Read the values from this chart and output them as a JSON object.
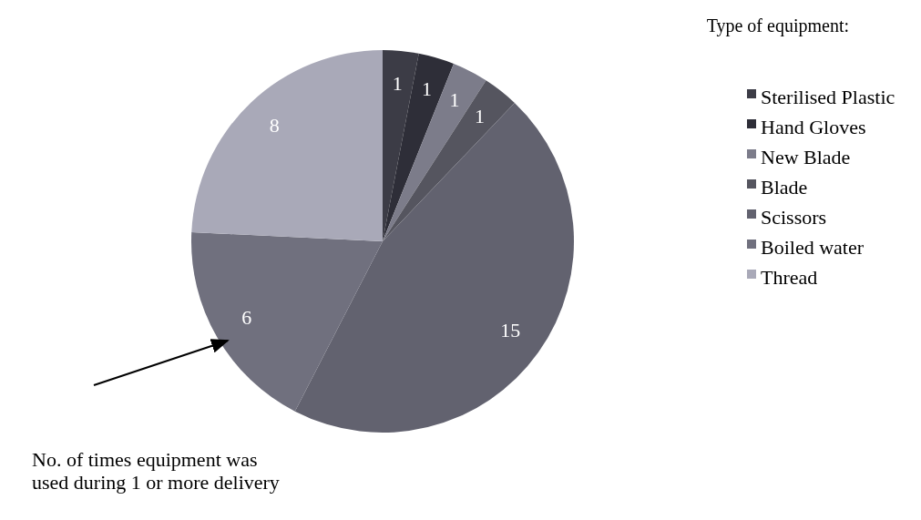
{
  "chart_data": {
    "type": "pie",
    "legend_title": "Type of equipment:",
    "categories": [
      "Sterilised Plastic",
      "Hand Gloves",
      "New Blade",
      "Blade",
      "Scissors",
      "Boiled water",
      "Thread"
    ],
    "values": [
      1,
      1,
      1,
      1,
      15,
      6,
      8
    ],
    "colors": [
      "#3c3c46",
      "#2e2e38",
      "#7c7c8a",
      "#55555f",
      "#62626f",
      "#70707e",
      "#a9a9b8"
    ],
    "data_labels": true,
    "legend": "right",
    "annotations": [
      "No. of times equipment was used during 1 or more delivery"
    ]
  }
}
